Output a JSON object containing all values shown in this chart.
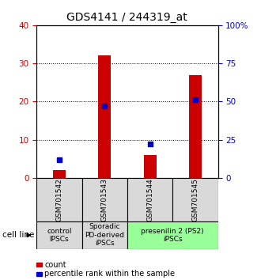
{
  "title": "GDS4141 / 244319_at",
  "samples": [
    "GSM701542",
    "GSM701543",
    "GSM701544",
    "GSM701545"
  ],
  "counts": [
    2,
    32,
    6,
    27
  ],
  "percentiles": [
    12,
    47,
    22,
    51
  ],
  "left_ylim": [
    0,
    40
  ],
  "right_ylim": [
    0,
    100
  ],
  "left_yticks": [
    0,
    10,
    20,
    30,
    40
  ],
  "right_yticks": [
    0,
    25,
    50,
    75,
    100
  ],
  "right_yticklabels": [
    "0",
    "25",
    "50",
    "75",
    "100%"
  ],
  "left_color": "#cc0000",
  "right_color": "#0000cc",
  "bar_color": "#cc0000",
  "dot_color": "#0000cc",
  "groups": [
    {
      "label": "control\nIPSCs",
      "start": 0,
      "end": 1,
      "color": "#d9d9d9"
    },
    {
      "label": "Sporadic\nPD-derived\niPSCs",
      "start": 1,
      "end": 2,
      "color": "#d9d9d9"
    },
    {
      "label": "presenilin 2 (PS2)\niPSCs",
      "start": 2,
      "end": 4,
      "color": "#99ff99"
    }
  ],
  "cell_line_label": "cell line",
  "legend_items": [
    {
      "color": "#cc0000",
      "label": "count"
    },
    {
      "color": "#0000cc",
      "label": "percentile rank within the sample"
    }
  ],
  "background_color": "#ffffff",
  "title_fontsize": 10,
  "tick_fontsize": 7.5,
  "sample_fontsize": 6.5,
  "group_fontsize": 6.5,
  "legend_fontsize": 7
}
